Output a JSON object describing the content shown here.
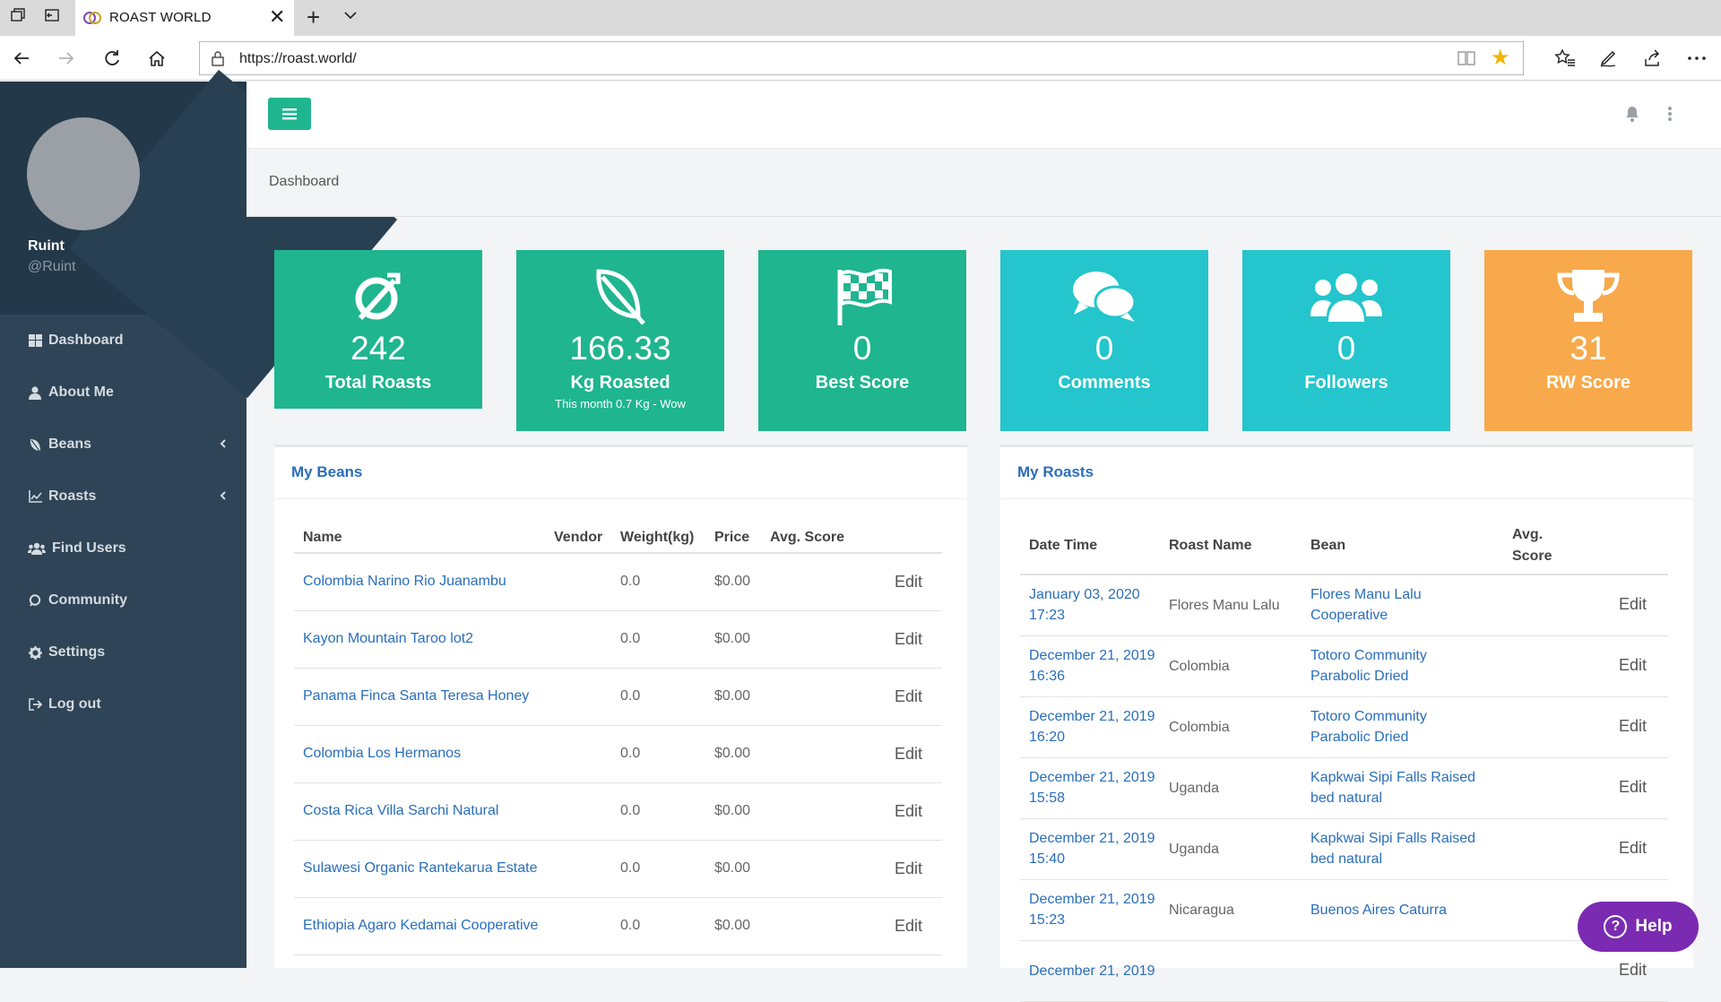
{
  "browser": {
    "tab_title": "ROAST WORLD",
    "url": "https://roast.world/"
  },
  "sidebar": {
    "username": "Ruint",
    "handle": "@Ruint",
    "items": [
      {
        "label": "Dashboard",
        "icon": "dashboard-icon"
      },
      {
        "label": "About Me",
        "icon": "user-icon"
      },
      {
        "label": "Beans",
        "icon": "bean-icon",
        "expandable": true
      },
      {
        "label": "Roasts",
        "icon": "chart-icon",
        "expandable": true
      },
      {
        "label": "Find Users",
        "icon": "users-icon"
      },
      {
        "label": "Community",
        "icon": "comment-icon"
      },
      {
        "label": "Settings",
        "icon": "gear-icon"
      },
      {
        "label": "Log out",
        "icon": "logout-icon"
      }
    ]
  },
  "breadcrumb": "Dashboard",
  "stats": [
    {
      "value": "242",
      "label": "Total Roasts",
      "icon": "roast-icon",
      "color": "#1fb58f"
    },
    {
      "value": "166.33",
      "label": "Kg Roasted",
      "sub": "This month 0.7 Kg - Wow",
      "icon": "leaf-icon",
      "color": "#1fb58f"
    },
    {
      "value": "0",
      "label": "Best Score",
      "icon": "flag-icon",
      "color": "#1fb58f"
    },
    {
      "value": "0",
      "label": "Comments",
      "icon": "comments-icon",
      "color": "#24c5cc"
    },
    {
      "value": "0",
      "label": "Followers",
      "icon": "followers-icon",
      "color": "#24c5cc"
    },
    {
      "value": "31",
      "label": "RW Score",
      "icon": "trophy-icon",
      "color": "#f7a94b"
    }
  ],
  "beans": {
    "title": "My Beans",
    "columns": [
      "Name",
      "Vendor",
      "Weight(kg)",
      "Price",
      "Avg. Score"
    ],
    "edit_label": "Edit",
    "rows": [
      {
        "name": "Colombia Narino Rio Juanambu",
        "vendor": "",
        "weight": "0.0",
        "price": "$0.00",
        "score": ""
      },
      {
        "name": "Kayon Mountain Taroo lot2",
        "vendor": "",
        "weight": "0.0",
        "price": "$0.00",
        "score": ""
      },
      {
        "name": "Panama Finca Santa Teresa Honey",
        "vendor": "",
        "weight": "0.0",
        "price": "$0.00",
        "score": ""
      },
      {
        "name": "Colombia Los Hermanos",
        "vendor": "",
        "weight": "0.0",
        "price": "$0.00",
        "score": ""
      },
      {
        "name": "Costa Rica Villa Sarchi Natural",
        "vendor": "",
        "weight": "0.0",
        "price": "$0.00",
        "score": ""
      },
      {
        "name": "Sulawesi Organic Rantekarua Estate",
        "vendor": "",
        "weight": "0.0",
        "price": "$0.00",
        "score": ""
      },
      {
        "name": "Ethiopia Agaro Kedamai Cooperative",
        "vendor": "",
        "weight": "0.0",
        "price": "$0.00",
        "score": ""
      }
    ]
  },
  "roasts": {
    "title": "My Roasts",
    "columns": [
      "Date Time",
      "Roast Name",
      "Bean",
      "Avg. Score"
    ],
    "edit_label": "Edit",
    "rows": [
      {
        "date": "January 03, 2020",
        "time": "17:23",
        "name": "Flores Manu Lalu",
        "bean": "Flores Manu Lalu Cooperative",
        "score": ""
      },
      {
        "date": "December 21, 2019",
        "time": "16:36",
        "name": "Colombia",
        "bean": "Totoro Community Parabolic Dried",
        "score": ""
      },
      {
        "date": "December 21, 2019",
        "time": "16:20",
        "name": "Colombia",
        "bean": "Totoro Community Parabolic Dried",
        "score": ""
      },
      {
        "date": "December 21, 2019",
        "time": "15:58",
        "name": "Uganda",
        "bean": "Kapkwai Sipi Falls Raised bed natural",
        "score": ""
      },
      {
        "date": "December 21, 2019",
        "time": "15:40",
        "name": "Uganda",
        "bean": "Kapkwai Sipi Falls Raised bed natural",
        "score": ""
      },
      {
        "date": "December 21, 2019",
        "time": "15:23",
        "name": "Nicaragua",
        "bean": "Buenos Aires Caturra",
        "score": ""
      },
      {
        "date": "December 21, 2019",
        "time": "",
        "name": "",
        "bean": "",
        "score": ""
      }
    ]
  },
  "help_label": "Help"
}
